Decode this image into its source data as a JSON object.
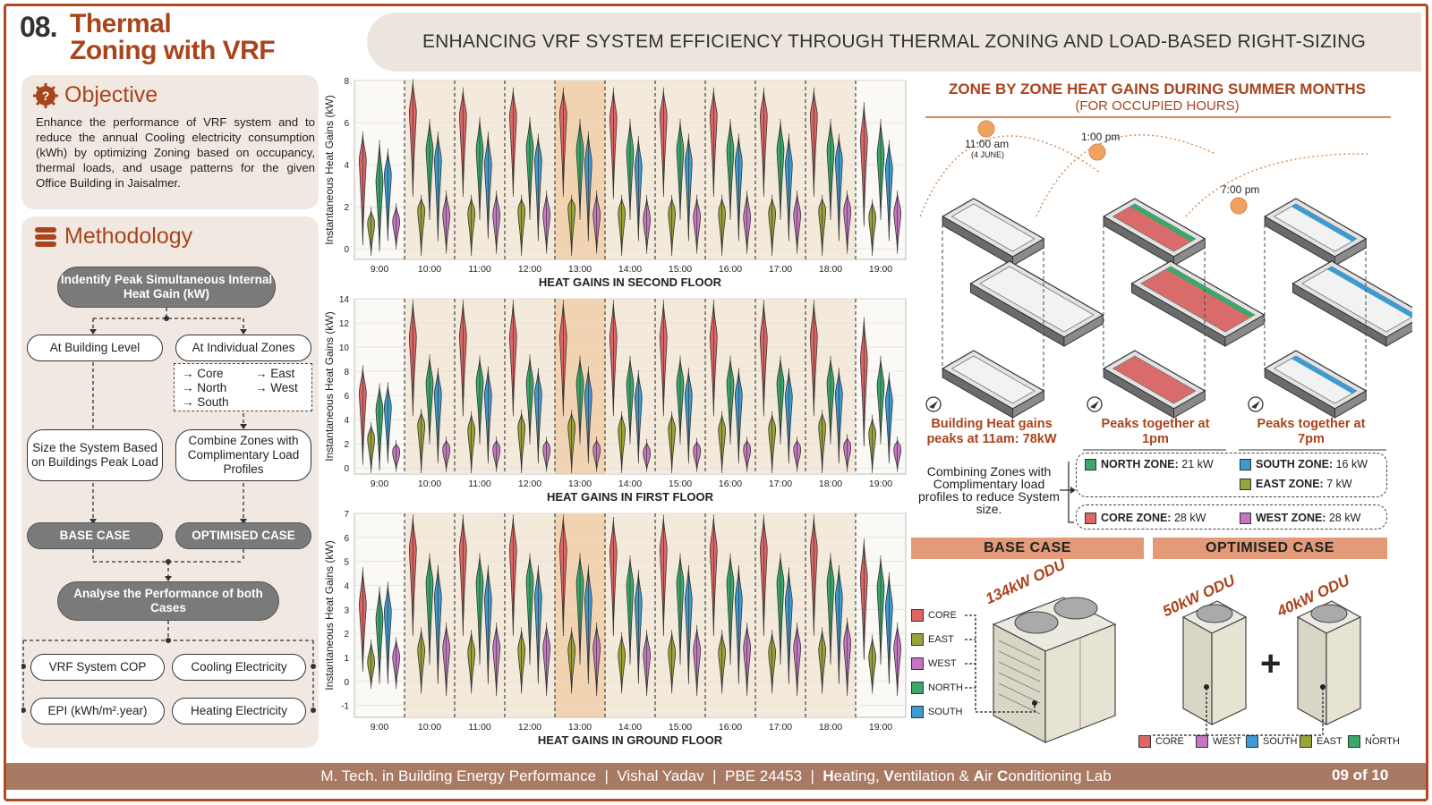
{
  "header": {
    "number": "08.",
    "title_line1": "Thermal",
    "title_line2": "Zoning with VRF",
    "banner": "ENHANCING VRF SYSTEM EFFICIENCY THROUGH THERMAL ZONING AND LOAD-BASED RIGHT-SIZING"
  },
  "objective": {
    "heading": "Objective",
    "text": "Enhance the performance of VRF system and to reduce the annual Cooling electricity consumption (kWh) by optimizing Zoning based on occupancy, thermal loads, and usage patterns for the given Office Building in Jaisalmer."
  },
  "methodology": {
    "heading": "Methodology",
    "step1": "Indentify Peak Simultaneous Internal Heat Gain (kW)",
    "branch_left": "At Building Level",
    "branch_right": "At Individual Zones",
    "zones": [
      "→ Core",
      "→ East",
      "→ North",
      "→ West",
      "→ South"
    ],
    "size_system": "Size the System Based on Buildings Peak Load",
    "combine": "Combine Zones with Complimentary Load Profiles",
    "base_case": "BASE CASE",
    "optimised_case": "OPTIMISED CASE",
    "analyse": "Analyse the Performance of both Cases",
    "metrics": [
      "VRF System COP",
      "Cooling Electricity",
      "EPI (kWh/m².year)",
      "Heating Electricity"
    ]
  },
  "chart_data": [
    {
      "type": "violin",
      "title": "HEAT GAINS IN SECOND FLOOR",
      "ylabel": "Instantaneous Heat Gains (kW)",
      "ylim": [
        -0.5,
        8
      ],
      "yticks": [
        0,
        2,
        4,
        6,
        8
      ],
      "categories": [
        "9:00",
        "10:00",
        "11:00",
        "12:00",
        "13:00",
        "14:00",
        "15:00",
        "16:00",
        "17:00",
        "18:00",
        "19:00"
      ],
      "series": [
        {
          "name": "CORE",
          "peaks": [
            4.2,
            6.5,
            6.3,
            6.3,
            6.4,
            6.2,
            6.3,
            6.3,
            6.3,
            6.3,
            5.2
          ],
          "min": [
            0.3,
            2.6,
            2.6,
            2.6,
            2.6,
            2.5,
            2.6,
            2.6,
            2.6,
            2.6,
            1.2
          ],
          "max": [
            5.4,
            7.9,
            7.5,
            7.5,
            7.5,
            7.5,
            7.5,
            7.5,
            7.5,
            7.5,
            6.8
          ]
        },
        {
          "name": "EAST",
          "peaks": [
            1.2,
            1.8,
            1.7,
            1.8,
            1.9,
            1.7,
            1.7,
            1.7,
            1.7,
            1.8,
            1.5
          ],
          "min": [
            -0.2,
            -0.2,
            -0.2,
            -0.2,
            -0.2,
            -0.2,
            -0.2,
            -0.2,
            -0.2,
            -0.2,
            -0.2
          ],
          "max": [
            1.8,
            2.4,
            2.4,
            2.4,
            2.4,
            2.4,
            2.4,
            2.4,
            2.4,
            2.4,
            2.2
          ]
        },
        {
          "name": "NORTH",
          "peaks": [
            3.2,
            4.7,
            4.7,
            4.8,
            4.7,
            4.6,
            4.7,
            4.7,
            4.7,
            4.7,
            4.5
          ],
          "min": [
            0.0,
            1.5,
            1.5,
            1.5,
            1.5,
            1.5,
            1.5,
            1.5,
            1.5,
            1.5,
            1.5
          ],
          "max": [
            5.0,
            6.0,
            6.1,
            6.1,
            6.0,
            6.0,
            6.0,
            6.0,
            6.0,
            6.0,
            6.0
          ]
        },
        {
          "name": "SOUTH",
          "peaks": [
            3.5,
            4.2,
            4.0,
            4.2,
            4.1,
            3.9,
            4.1,
            4.1,
            4.0,
            4.2,
            3.8
          ],
          "min": [
            0.5,
            0.5,
            0.6,
            0.5,
            0.5,
            0.5,
            0.5,
            0.5,
            0.5,
            0.5,
            0.5
          ],
          "max": [
            4.6,
            5.4,
            5.4,
            5.3,
            5.4,
            5.2,
            5.3,
            5.3,
            5.3,
            5.3,
            5.0
          ]
        },
        {
          "name": "WEST",
          "peaks": [
            1.3,
            1.6,
            1.6,
            1.6,
            1.6,
            1.4,
            1.5,
            1.5,
            1.6,
            1.8,
            1.7
          ],
          "min": [
            0.1,
            -0.1,
            -0.1,
            -0.1,
            -0.1,
            -0.1,
            -0.1,
            -0.1,
            -0.1,
            -0.1,
            -0.1
          ],
          "max": [
            2.0,
            2.6,
            2.6,
            2.6,
            2.6,
            2.4,
            2.4,
            2.6,
            2.6,
            2.6,
            2.6
          ]
        }
      ]
    },
    {
      "type": "violin",
      "title": "HEAT GAINS IN FIRST FLOOR",
      "ylabel": "Instantaneous Heat Gains (kW)",
      "ylim": [
        -0.5,
        14
      ],
      "yticks": [
        0,
        2,
        4,
        6,
        8,
        10,
        12,
        14
      ],
      "categories": [
        "9:00",
        "10:00",
        "11:00",
        "12:00",
        "13:00",
        "14:00",
        "15:00",
        "16:00",
        "17:00",
        "18:00",
        "19:00"
      ],
      "series": [
        {
          "name": "CORE",
          "peaks": [
            6.2,
            10.8,
            10.9,
            10.8,
            10.8,
            10.8,
            10.8,
            10.8,
            10.7,
            10.8,
            9.0
          ],
          "min": [
            0.5,
            4.5,
            4.5,
            4.5,
            4.5,
            4.5,
            4.5,
            4.5,
            4.5,
            4.5,
            2.0
          ],
          "max": [
            8.2,
            13.6,
            13.6,
            13.6,
            13.6,
            13.6,
            13.6,
            13.6,
            13.6,
            13.6,
            12.2
          ]
        },
        {
          "name": "EAST",
          "peaks": [
            2.4,
            3.5,
            3.1,
            3.3,
            3.4,
            3.1,
            3.2,
            3.1,
            3.2,
            3.4,
            2.8
          ],
          "min": [
            -0.2,
            -0.2,
            -0.2,
            -0.2,
            -0.2,
            -0.2,
            -0.2,
            -0.2,
            -0.2,
            -0.2,
            -0.2
          ],
          "max": [
            3.5,
            4.6,
            4.4,
            4.5,
            4.5,
            4.4,
            4.4,
            4.4,
            4.4,
            4.5,
            4.1
          ]
        },
        {
          "name": "NORTH",
          "peaks": [
            4.8,
            7.0,
            7.1,
            7.0,
            7.0,
            6.9,
            7.0,
            7.0,
            7.0,
            7.0,
            6.8
          ],
          "min": [
            0.0,
            2.2,
            2.2,
            2.2,
            2.2,
            2.2,
            2.2,
            2.2,
            2.2,
            2.2,
            2.2
          ],
          "max": [
            6.7,
            9.1,
            9.0,
            9.1,
            9.0,
            9.0,
            9.0,
            9.0,
            9.0,
            9.0,
            9.0
          ]
        },
        {
          "name": "SOUTH",
          "peaks": [
            5.0,
            6.1,
            6.0,
            6.1,
            6.0,
            5.8,
            6.0,
            6.0,
            5.9,
            6.1,
            5.5
          ],
          "min": [
            0.6,
            0.6,
            0.6,
            0.6,
            0.6,
            0.6,
            0.6,
            0.6,
            0.6,
            0.6,
            0.6
          ],
          "max": [
            6.8,
            8.0,
            8.1,
            8.0,
            8.1,
            7.8,
            8.0,
            8.0,
            8.0,
            8.0,
            7.6
          ]
        },
        {
          "name": "WEST",
          "peaks": [
            1.3,
            1.5,
            1.5,
            1.5,
            1.5,
            1.2,
            1.4,
            1.5,
            1.5,
            1.7,
            1.5
          ],
          "min": [
            -0.1,
            -0.1,
            -0.1,
            -0.1,
            -0.1,
            -0.1,
            -0.1,
            -0.1,
            -0.1,
            -0.1,
            -0.1
          ],
          "max": [
            2.0,
            2.3,
            2.3,
            2.3,
            2.3,
            2.1,
            2.2,
            2.3,
            2.3,
            2.5,
            2.3
          ]
        }
      ]
    },
    {
      "type": "violin",
      "title": "HEAT GAINS IN GROUND FLOOR",
      "ylabel": "Instantaneous Heat Gains (kW)",
      "ylim": [
        -1.5,
        7
      ],
      "yticks": [
        -1,
        0,
        1,
        2,
        3,
        4,
        5,
        6,
        7
      ],
      "categories": [
        "9:00",
        "10:00",
        "11:00",
        "12:00",
        "13:00",
        "14:00",
        "15:00",
        "16:00",
        "17:00",
        "18:00",
        "19:00"
      ],
      "series": [
        {
          "name": "CORE",
          "peaks": [
            3.2,
            5.5,
            5.5,
            5.5,
            5.5,
            5.4,
            5.5,
            5.5,
            5.5,
            5.5,
            4.3
          ],
          "min": [
            0.5,
            2.0,
            2.0,
            2.0,
            2.0,
            2.0,
            2.0,
            2.0,
            2.0,
            2.0,
            1.0
          ],
          "max": [
            4.6,
            6.8,
            6.8,
            6.8,
            6.8,
            6.7,
            6.8,
            6.8,
            6.8,
            6.8,
            5.8
          ]
        },
        {
          "name": "EAST",
          "peaks": [
            0.8,
            1.3,
            1.2,
            1.3,
            1.3,
            1.1,
            1.2,
            1.2,
            1.2,
            1.3,
            1.0
          ],
          "min": [
            -0.2,
            -0.4,
            -0.4,
            -0.4,
            -0.4,
            -0.4,
            -0.4,
            -0.4,
            -0.4,
            -0.4,
            -0.4
          ],
          "max": [
            1.6,
            2.1,
            2.0,
            2.1,
            2.1,
            1.9,
            2.0,
            2.0,
            2.0,
            2.1,
            1.8
          ]
        },
        {
          "name": "NORTH",
          "peaks": [
            2.6,
            4.1,
            4.1,
            4.2,
            4.1,
            4.0,
            4.1,
            4.1,
            4.1,
            4.1,
            3.9
          ],
          "min": [
            0.0,
            0.8,
            0.8,
            0.8,
            0.8,
            0.8,
            0.8,
            0.8,
            0.8,
            0.8,
            0.8
          ],
          "max": [
            3.8,
            5.2,
            5.2,
            5.2,
            5.2,
            5.1,
            5.2,
            5.2,
            5.2,
            5.2,
            5.1
          ]
        },
        {
          "name": "SOUTH",
          "peaks": [
            2.9,
            3.5,
            3.4,
            3.5,
            3.4,
            3.3,
            3.4,
            3.4,
            3.3,
            3.5,
            3.1
          ],
          "min": [
            0.0,
            0.0,
            0.0,
            0.0,
            0.0,
            0.0,
            0.0,
            0.0,
            0.0,
            0.0,
            0.0
          ],
          "max": [
            4.0,
            4.7,
            4.7,
            4.7,
            4.7,
            4.5,
            4.7,
            4.7,
            4.6,
            4.7,
            4.4
          ]
        },
        {
          "name": "WEST",
          "peaks": [
            1.0,
            1.4,
            1.4,
            1.4,
            1.4,
            1.1,
            1.3,
            1.4,
            1.4,
            1.6,
            1.4
          ],
          "min": [
            -0.2,
            -0.5,
            -0.5,
            -0.5,
            -0.5,
            -0.5,
            -0.5,
            -0.5,
            -0.5,
            -0.5,
            -0.5
          ],
          "max": [
            1.7,
            2.3,
            2.3,
            2.3,
            2.3,
            2.0,
            2.2,
            2.3,
            2.3,
            2.5,
            2.3
          ]
        }
      ]
    }
  ],
  "colors": {
    "CORE": "#e06666",
    "EAST": "#9aa33a",
    "NORTH": "#3aa86a",
    "SOUTH": "#3d9bd1",
    "WEST": "#c576c2",
    "accent": "#a9441d",
    "shade_peak": "#f0c9a0",
    "shade_light": "#f3e6d6"
  },
  "right": {
    "title": "ZONE BY ZONE HEAT GAINS DURING SUMMER MONTHS",
    "subtitle": "(FOR OCCUPIED HOURS)",
    "times": [
      {
        "label": "11:00 am",
        "sub": "(4 JUNE)"
      },
      {
        "label": "1:00 pm",
        "sub": ""
      },
      {
        "label": "7:00 pm",
        "sub": ""
      }
    ],
    "captions": [
      "Building Heat gains peaks at 11am: 78kW",
      "Peaks together at 1pm",
      "Peaks together at 7pm"
    ],
    "combining_text": "Combining Zones with Complimentary load profiles to reduce System size.",
    "zone_values": [
      {
        "label": "NORTH ZONE:",
        "value": "21 kW",
        "color": "#3aa86a"
      },
      {
        "label": "SOUTH ZONE:",
        "value": "16 kW",
        "color": "#3d9bd1"
      },
      {
        "label": "EAST ZONE:",
        "value": "7 kW",
        "color": "#9aa33a"
      },
      {
        "label": "CORE ZONE:",
        "value": "28 kW",
        "color": "#e06666"
      },
      {
        "label": "WEST ZONE:",
        "value": "28 kW",
        "color": "#c576c2"
      }
    ],
    "base_case": "BASE CASE",
    "optimised_case": "OPTIMISED CASE",
    "base_odu": "134kW ODU",
    "opt_odu_1": "50kW ODU",
    "opt_odu_2": "40kW ODU",
    "plus": "+",
    "legend": [
      "CORE",
      "EAST",
      "WEST",
      "NORTH",
      "SOUTH"
    ],
    "opt_legend": [
      "CORE",
      "WEST",
      "SOUTH",
      "EAST",
      "NORTH"
    ]
  },
  "footer": {
    "text_parts": [
      "M. Tech. in Building Energy Performance  |  Vishal Yadav  |  PBE 24453  |  ",
      "H",
      "eating, ",
      "V",
      "entilation & ",
      "A",
      "ir ",
      "C",
      "onditioning Lab"
    ],
    "page": "09 of 10"
  }
}
